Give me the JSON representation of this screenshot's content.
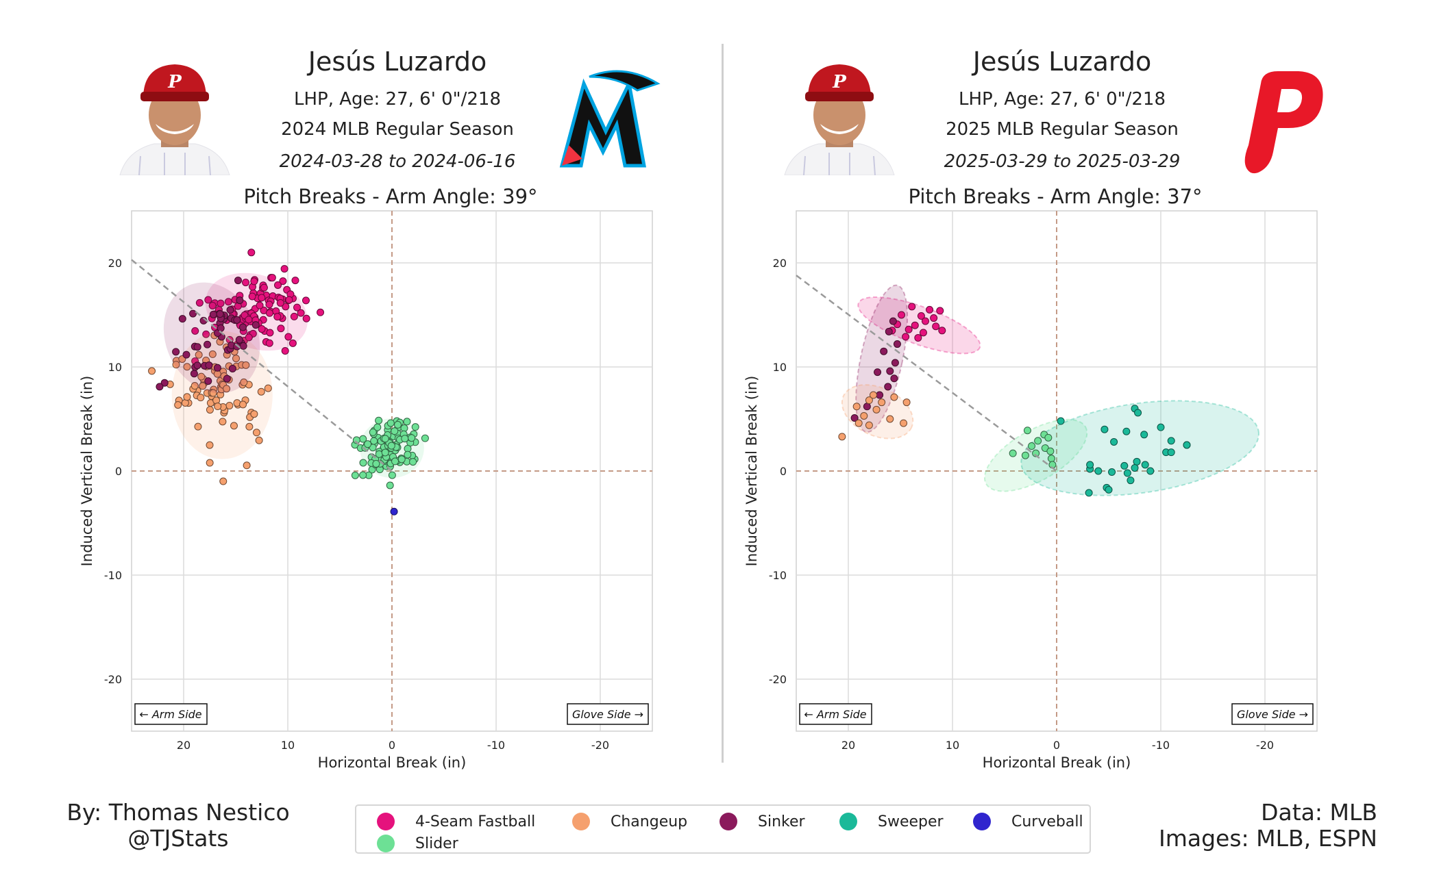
{
  "left_panel": {
    "name": "Jesús Luzardo",
    "bio": "LHP, Age: 27, 6' 0\"/218",
    "season": "2024 MLB Regular Season",
    "dates": "2024-03-28 to 2024-06-16",
    "logo": "marlins-logo",
    "chart_title": "Pitch Breaks - Arm Angle: 39°"
  },
  "right_panel": {
    "name": "Jesús Luzardo",
    "bio": "LHP, Age: 27, 6' 0\"/218",
    "season": "2025 MLB Regular Season",
    "dates": "2025-03-29 to 2025-03-29",
    "logo": "phillies-logo",
    "chart_title": "Pitch Breaks - Arm Angle: 37°"
  },
  "footer": {
    "byline": "By: Thomas Nestico",
    "handle": "@TJStats",
    "data_source": "Data: MLB",
    "image_source": "Images: MLB, ESPN"
  },
  "legend": [
    {
      "label": "4-Seam Fastball",
      "color": "#e5127d"
    },
    {
      "label": "Changeup",
      "color": "#f5a06e"
    },
    {
      "label": "Sinker",
      "color": "#8b1a5c"
    },
    {
      "label": "Sweeper",
      "color": "#1bb999"
    },
    {
      "label": "Curveball",
      "color": "#3025ce"
    },
    {
      "label": "Slider",
      "color": "#6de095"
    }
  ],
  "chart_data": [
    {
      "type": "scatter",
      "title": "Pitch Breaks - Arm Angle: 39°",
      "xlabel": "Horizontal Break (in)",
      "ylabel": "Induced Vertical Break (in)",
      "xlim": [
        25,
        -25
      ],
      "ylim": [
        -25,
        25
      ],
      "xticks": [
        20,
        10,
        0,
        -10,
        -20
      ],
      "yticks": [
        20,
        10,
        0,
        -10,
        -20
      ],
      "grid": true,
      "arm_angle_line": {
        "from": [
          25,
          20.3
        ],
        "to": [
          0,
          0
        ]
      },
      "annotations": {
        "left": "← Arm Side",
        "right": "Glove Side →"
      },
      "series": [
        {
          "name": "4-Seam Fastball",
          "color": "#e5127d",
          "center": [
            13,
            15.3
          ],
          "spread": [
            2.3,
            1.6
          ],
          "rotation": -20,
          "n": 110,
          "extra": [
            [
              13.5,
              21
            ]
          ]
        },
        {
          "name": "Changeup",
          "color": "#f5a06e",
          "center": [
            16.3,
            7.3
          ],
          "spread": [
            2.2,
            2.8
          ],
          "rotation": 0,
          "n": 85
        },
        {
          "name": "Sinker",
          "color": "#8b1a5c",
          "center": [
            17.3,
            12.8
          ],
          "spread": [
            2.0,
            2.5
          ],
          "rotation": 25,
          "n": 45
        },
        {
          "name": "Slider",
          "color": "#6de095",
          "center": [
            0,
            2.2
          ],
          "spread": [
            1.4,
            1.3
          ],
          "rotation": 0,
          "n": 110
        },
        {
          "name": "Curveball",
          "color": "#3025ce",
          "center": [
            -0.2,
            -3.9
          ],
          "spread": [
            0,
            0
          ],
          "rotation": 0,
          "n": 1
        }
      ]
    },
    {
      "type": "scatter",
      "title": "Pitch Breaks - Arm Angle: 37°",
      "xlabel": "Horizontal Break (in)",
      "ylabel": "Induced Vertical Break (in)",
      "xlim": [
        25,
        -25
      ],
      "ylim": [
        -25,
        25
      ],
      "xticks": [
        20,
        10,
        0,
        -10,
        -20
      ],
      "yticks": [
        20,
        10,
        0,
        -10,
        -20
      ],
      "grid": true,
      "arm_angle_line": {
        "from": [
          25,
          18.8
        ],
        "to": [
          0,
          0
        ]
      },
      "annotations": {
        "left": "← Arm Side",
        "right": "Glove Side →"
      },
      "series": [
        {
          "name": "4-Seam Fastball",
          "color": "#e5127d",
          "points": [
            [
              13.9,
              15.8
            ],
            [
              12.2,
              15.5
            ],
            [
              11.2,
              15.4
            ],
            [
              14.9,
              15.0
            ],
            [
              13.0,
              14.9
            ],
            [
              11.8,
              14.7
            ],
            [
              12.6,
              14.4
            ],
            [
              15.3,
              14.1
            ],
            [
              13.6,
              14.0
            ],
            [
              11.6,
              13.9
            ],
            [
              14.2,
              13.6
            ],
            [
              15.8,
              13.5
            ],
            [
              11.0,
              13.5
            ],
            [
              12.8,
              13.3
            ],
            [
              14.5,
              12.9
            ],
            [
              13.3,
              12.8
            ]
          ]
        },
        {
          "name": "Sinker",
          "color": "#8b1a5c",
          "points": [
            [
              15.7,
              14.4
            ],
            [
              16.1,
              13.4
            ],
            [
              15.3,
              12.2
            ],
            [
              16.6,
              11.5
            ],
            [
              15.5,
              10.4
            ],
            [
              16.0,
              9.6
            ],
            [
              17.2,
              9.5
            ],
            [
              15.6,
              8.9
            ],
            [
              16.2,
              8.1
            ],
            [
              17.0,
              7.3
            ],
            [
              18.2,
              6.2
            ],
            [
              19.4,
              5.1
            ]
          ]
        },
        {
          "name": "Changeup",
          "color": "#f5a06e",
          "points": [
            [
              17.6,
              7.3
            ],
            [
              15.6,
              7.1
            ],
            [
              18.0,
              6.8
            ],
            [
              16.8,
              6.6
            ],
            [
              14.4,
              6.6
            ],
            [
              19.2,
              6.2
            ],
            [
              17.3,
              5.9
            ],
            [
              18.5,
              5.3
            ],
            [
              16.0,
              5.0
            ],
            [
              19.0,
              4.6
            ],
            [
              14.7,
              4.6
            ],
            [
              18.0,
              4.4
            ],
            [
              20.6,
              3.3
            ]
          ]
        },
        {
          "name": "Slider",
          "color": "#6de095",
          "points": [
            [
              2.8,
              3.9
            ],
            [
              1.2,
              3.5
            ],
            [
              0.8,
              3.2
            ],
            [
              1.8,
              2.9
            ],
            [
              2.4,
              2.4
            ],
            [
              1.1,
              2.2
            ],
            [
              0.6,
              1.9
            ],
            [
              2.0,
              1.7
            ],
            [
              3.0,
              1.5
            ],
            [
              4.2,
              1.7
            ],
            [
              0.5,
              1.2
            ],
            [
              0.4,
              0.6
            ]
          ]
        },
        {
          "name": "Sweeper",
          "color": "#1bb999",
          "points": [
            [
              -7.5,
              6.0
            ],
            [
              -7.8,
              5.6
            ],
            [
              -10.0,
              4.2
            ],
            [
              -4.6,
              4.0
            ],
            [
              -6.7,
              3.8
            ],
            [
              -8.4,
              3.5
            ],
            [
              -11.0,
              2.9
            ],
            [
              -5.5,
              2.8
            ],
            [
              -12.5,
              2.5
            ],
            [
              -10.5,
              1.8
            ],
            [
              -7.7,
              0.9
            ],
            [
              -8.5,
              0.6
            ],
            [
              -6.5,
              0.5
            ],
            [
              -7.5,
              0.3
            ],
            [
              -4.0,
              0.0
            ],
            [
              -5.3,
              -0.1
            ],
            [
              -0.4,
              4.8
            ],
            [
              -7.1,
              -0.9
            ],
            [
              -9.0,
              0.0
            ],
            [
              -6.8,
              -0.2
            ],
            [
              -3.2,
              0.2
            ],
            [
              -3.2,
              0.6
            ],
            [
              -4.8,
              -1.6
            ],
            [
              -5.0,
              -1.8
            ],
            [
              -3.1,
              -2.1
            ],
            [
              -12.5,
              2.5
            ],
            [
              -11.0,
              1.8
            ]
          ]
        }
      ],
      "ellipses": [
        {
          "name": "4-Seam Fastball",
          "center": [
            13.2,
            14.0
          ],
          "axes": [
            6.2,
            1.8
          ],
          "rotation": 20
        },
        {
          "name": "Sinker",
          "center": [
            16.8,
            10.8
          ],
          "axes": [
            2.0,
            7.2
          ],
          "rotation": 12
        },
        {
          "name": "Changeup",
          "center": [
            17.2,
            5.7
          ],
          "axes": [
            3.6,
            2.3
          ],
          "rotation": 25
        },
        {
          "name": "Slider",
          "center": [
            2.0,
            1.5
          ],
          "axes": [
            5.5,
            2.4
          ],
          "rotation": -30
        },
        {
          "name": "Sweeper",
          "center": [
            -8.0,
            2.2
          ],
          "axes": [
            11.5,
            4.3
          ],
          "rotation": -8
        }
      ]
    }
  ]
}
